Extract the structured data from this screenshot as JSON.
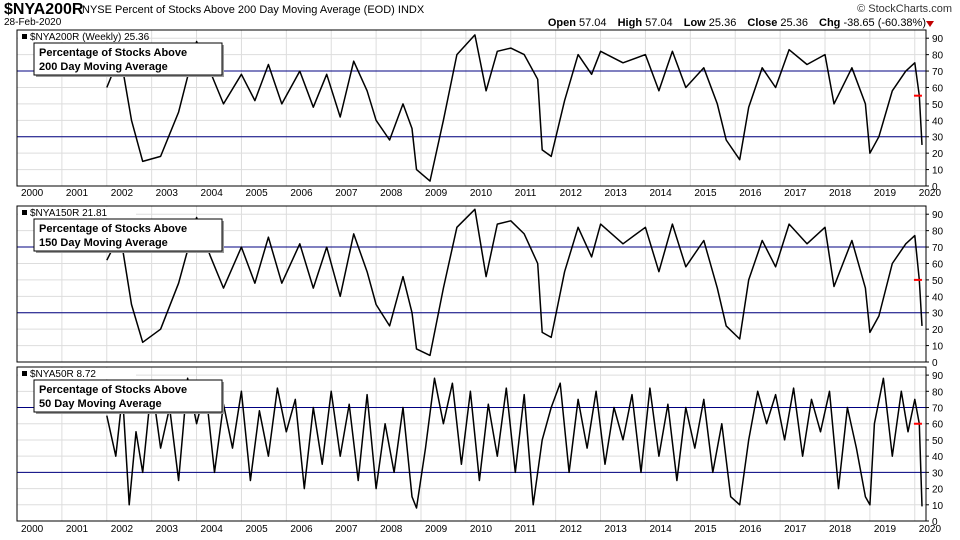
{
  "header": {
    "symbol": "$NYA200R",
    "description": "NYSE Percent of Stocks Above 200 Day Moving Average (EOD)  INDX",
    "date": "28-Feb-2020",
    "brand": "© StockCharts.com",
    "quote": {
      "open_label": "Open",
      "open": "57.04",
      "high_label": "High",
      "high": "57.04",
      "low_label": "Low",
      "low": "25.36",
      "close_label": "Close",
      "close": "25.36",
      "chg_label": "Chg",
      "chg": "-38.65 (-60.38%)"
    }
  },
  "colors": {
    "line": "#000000",
    "ref": "#000080",
    "marker": "#ff0000",
    "grid": "#dddddd"
  },
  "x_axis": {
    "ticks": [
      "2000",
      "2001",
      "2002",
      "2003",
      "2004",
      "2005",
      "2006",
      "2007",
      "2008",
      "2009",
      "2010",
      "2011",
      "2012",
      "2013",
      "2014",
      "2015",
      "2016",
      "2017",
      "2018",
      "2019",
      "2020"
    ]
  },
  "chart_data": [
    {
      "type": "line",
      "label": "$NYA200R (Weekly) 25.36",
      "annotation": [
        "Percentage of Stocks Above",
        "200 Day Moving Average"
      ],
      "ylim": [
        0,
        95
      ],
      "yticks": [
        0,
        10,
        20,
        30,
        40,
        50,
        60,
        70,
        80,
        90
      ],
      "reference_lines": [
        30,
        70
      ],
      "last_value": 25.36,
      "x": [
        2002.0,
        2002.3,
        2002.55,
        2002.8,
        2003.2,
        2003.6,
        2004.0,
        2004.3,
        2004.6,
        2005.0,
        2005.3,
        2005.6,
        2005.9,
        2006.3,
        2006.6,
        2006.9,
        2007.2,
        2007.5,
        2007.8,
        2008.0,
        2008.3,
        2008.6,
        2008.8,
        2008.9,
        2009.2,
        2009.5,
        2009.8,
        2010.2,
        2010.45,
        2010.7,
        2011.0,
        2011.3,
        2011.6,
        2011.7,
        2011.9,
        2012.2,
        2012.5,
        2012.8,
        2013.0,
        2013.5,
        2014.0,
        2014.3,
        2014.6,
        2014.9,
        2015.3,
        2015.6,
        2015.8,
        2016.1,
        2016.3,
        2016.6,
        2016.9,
        2017.2,
        2017.6,
        2018.0,
        2018.2,
        2018.6,
        2018.9,
        2019.0,
        2019.2,
        2019.5,
        2019.8,
        2020.0,
        2020.1,
        2020.16
      ],
      "y": [
        60,
        80,
        40,
        15,
        18,
        45,
        88,
        70,
        50,
        68,
        52,
        74,
        50,
        70,
        48,
        68,
        42,
        76,
        58,
        40,
        28,
        50,
        35,
        10,
        3,
        40,
        80,
        92,
        58,
        82,
        84,
        80,
        65,
        22,
        18,
        52,
        80,
        68,
        82,
        75,
        80,
        58,
        82,
        60,
        72,
        50,
        28,
        16,
        48,
        72,
        60,
        83,
        74,
        80,
        50,
        72,
        50,
        20,
        30,
        58,
        70,
        75,
        55,
        25
      ]
    },
    {
      "type": "line",
      "label": "$NYA150R 21.81",
      "annotation": [
        "Percentage of Stocks Above",
        "150 Day Moving Average"
      ],
      "ylim": [
        0,
        95
      ],
      "yticks": [
        0,
        10,
        20,
        30,
        40,
        50,
        60,
        70,
        80,
        90
      ],
      "reference_lines": [
        30,
        70
      ],
      "last_value": 21.81,
      "x": [
        2002.0,
        2002.3,
        2002.55,
        2002.8,
        2003.2,
        2003.6,
        2004.0,
        2004.3,
        2004.6,
        2005.0,
        2005.3,
        2005.6,
        2005.9,
        2006.3,
        2006.6,
        2006.9,
        2007.2,
        2007.5,
        2007.8,
        2008.0,
        2008.3,
        2008.6,
        2008.8,
        2008.9,
        2009.2,
        2009.5,
        2009.8,
        2010.2,
        2010.45,
        2010.7,
        2011.0,
        2011.3,
        2011.6,
        2011.7,
        2011.9,
        2012.2,
        2012.5,
        2012.8,
        2013.0,
        2013.5,
        2014.0,
        2014.3,
        2014.6,
        2014.9,
        2015.3,
        2015.6,
        2015.8,
        2016.1,
        2016.3,
        2016.6,
        2016.9,
        2017.2,
        2017.6,
        2018.0,
        2018.2,
        2018.6,
        2018.9,
        2019.0,
        2019.2,
        2019.5,
        2019.8,
        2020.0,
        2020.1,
        2020.16
      ],
      "y": [
        62,
        78,
        35,
        12,
        20,
        48,
        88,
        65,
        45,
        70,
        48,
        76,
        48,
        72,
        45,
        70,
        40,
        78,
        55,
        35,
        22,
        52,
        30,
        8,
        4,
        45,
        82,
        93,
        52,
        84,
        86,
        78,
        60,
        18,
        15,
        55,
        82,
        64,
        84,
        72,
        82,
        55,
        84,
        58,
        74,
        45,
        22,
        14,
        50,
        74,
        58,
        84,
        72,
        82,
        46,
        74,
        45,
        18,
        28,
        60,
        72,
        77,
        50,
        22
      ]
    },
    {
      "type": "line",
      "label": "$NYA50R 8.72",
      "annotation": [
        "Percentage of Stocks Above",
        "50 Day Moving Average"
      ],
      "ylim": [
        0,
        95
      ],
      "yticks": [
        0,
        10,
        20,
        30,
        40,
        50,
        60,
        70,
        80,
        90
      ],
      "reference_lines": [
        30,
        70
      ],
      "last_value": 8.72,
      "x": [
        2002.0,
        2002.2,
        2002.35,
        2002.5,
        2002.65,
        2002.8,
        2003.0,
        2003.2,
        2003.4,
        2003.6,
        2003.8,
        2004.0,
        2004.2,
        2004.4,
        2004.6,
        2004.8,
        2005.0,
        2005.2,
        2005.4,
        2005.6,
        2005.8,
        2006.0,
        2006.2,
        2006.4,
        2006.6,
        2006.8,
        2007.0,
        2007.2,
        2007.4,
        2007.6,
        2007.8,
        2008.0,
        2008.2,
        2008.4,
        2008.6,
        2008.8,
        2008.9,
        2009.1,
        2009.3,
        2009.5,
        2009.7,
        2009.9,
        2010.1,
        2010.3,
        2010.5,
        2010.7,
        2010.9,
        2011.1,
        2011.3,
        2011.5,
        2011.7,
        2011.9,
        2012.1,
        2012.3,
        2012.5,
        2012.7,
        2012.9,
        2013.1,
        2013.3,
        2013.5,
        2013.7,
        2013.9,
        2014.1,
        2014.3,
        2014.5,
        2014.7,
        2014.9,
        2015.1,
        2015.3,
        2015.5,
        2015.7,
        2015.9,
        2016.1,
        2016.3,
        2016.5,
        2016.7,
        2016.9,
        2017.1,
        2017.3,
        2017.5,
        2017.7,
        2017.9,
        2018.1,
        2018.3,
        2018.5,
        2018.7,
        2018.9,
        2019.0,
        2019.1,
        2019.3,
        2019.5,
        2019.7,
        2019.85,
        2020.0,
        2020.1,
        2020.16
      ],
      "y": [
        65,
        40,
        78,
        10,
        55,
        30,
        85,
        45,
        70,
        25,
        88,
        60,
        82,
        30,
        72,
        45,
        80,
        25,
        68,
        40,
        82,
        55,
        75,
        20,
        70,
        35,
        80,
        40,
        72,
        25,
        78,
        20,
        60,
        30,
        70,
        15,
        8,
        45,
        88,
        60,
        85,
        35,
        80,
        25,
        72,
        40,
        82,
        30,
        78,
        10,
        50,
        70,
        85,
        30,
        75,
        45,
        80,
        35,
        70,
        50,
        78,
        30,
        82,
        40,
        72,
        25,
        70,
        45,
        75,
        30,
        60,
        15,
        10,
        50,
        80,
        60,
        78,
        50,
        82,
        40,
        75,
        55,
        80,
        20,
        70,
        45,
        15,
        10,
        60,
        88,
        40,
        80,
        55,
        75,
        60,
        9
      ]
    }
  ]
}
